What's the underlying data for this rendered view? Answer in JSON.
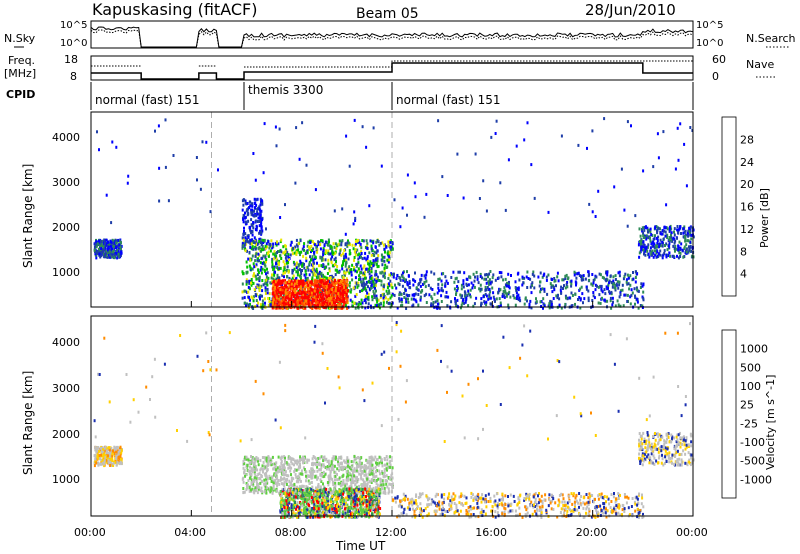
{
  "header": {
    "station": "Kapuskasing (fitACF)",
    "beam": "Beam 05",
    "date": "28/Jun/2010"
  },
  "side_labels": {
    "nsky": "N.Sky",
    "nsearch": "N.Search",
    "freq_line1": "Freq.",
    "freq_line2": "[MHz]",
    "nave": "Nave",
    "cpid": "CPID"
  },
  "noise_panel": {
    "left_ticks": [
      "10^5",
      "10^0"
    ],
    "right_ticks": [
      "10^5",
      "10^0"
    ]
  },
  "freq_panel": {
    "left_ticks": [
      "18",
      "8"
    ],
    "right_ticks": [
      "60",
      "0"
    ]
  },
  "cpid_segments": [
    {
      "start_hr": 0.0,
      "end_hr": 6.1,
      "label": "normal (fast) 151"
    },
    {
      "start_hr": 6.1,
      "end_hr": 12.0,
      "label": "themis 3300"
    },
    {
      "start_hr": 12.0,
      "end_hr": 24.0,
      "label": "normal (fast) 151"
    }
  ],
  "gap_markers_hr": [
    4.8,
    12.0
  ],
  "x_axis": {
    "label": "Time UT",
    "ticks": [
      "00:00",
      "04:00",
      "08:00",
      "12:00",
      "16:00",
      "20:00",
      "00:00"
    ],
    "range_hr": [
      0,
      24
    ]
  },
  "power_panel": {
    "ylabel": "Slant Range [km]",
    "yticks": [
      "1000",
      "2000",
      "3000",
      "4000"
    ],
    "colorbar_label": "Power [dB]",
    "colorbar_ticks": [
      "28",
      "24",
      "20",
      "16",
      "12",
      "8",
      "4"
    ],
    "colors": [
      "#0000ff",
      "#1e3ea8",
      "#2e8b57",
      "#00c000",
      "#e8e800",
      "#ff8c00",
      "#ff5000",
      "#ff0000"
    ]
  },
  "velocity_panel": {
    "ylabel": "Slant Range [km]",
    "yticks": [
      "1000",
      "2000",
      "3000",
      "4000"
    ],
    "colorbar_label": "Velocity [m s^-1]",
    "colorbar_ticks": [
      "1000",
      "500",
      "100",
      "25",
      "-25",
      "-100",
      "-500",
      "-1000"
    ],
    "colors": [
      "#1a2fb0",
      "#2d6fb8",
      "#2e8b57",
      "#5fd040",
      "#c0c0c0",
      "#ffd000",
      "#ff8c00",
      "#ff4000",
      "#ff0000"
    ]
  },
  "chart_data": [
    {
      "type": "heatmap",
      "title": "Kapuskasing (fitACF) Beam 05 28/Jun/2010",
      "xlabel": "Time UT",
      "ylabel": "Slant Range [km]",
      "xlim_hr": [
        0,
        24
      ],
      "ylim_km": [
        180,
        4500
      ],
      "colorbar": {
        "label": "Power [dB]",
        "range": [
          0,
          30
        ]
      },
      "regions": [
        {
          "name": "night echoes",
          "hr": [
            0.1,
            1.2
          ],
          "km": [
            1300,
            1700
          ],
          "dB": 6
        },
        {
          "name": "morning far range",
          "hr": [
            6.0,
            6.8
          ],
          "km": [
            1600,
            2600
          ],
          "dB": 6
        },
        {
          "name": "main echo region",
          "hr": [
            6.0,
            12.0
          ],
          "km": [
            180,
            1700
          ],
          "dB": 14
        },
        {
          "name": "strong echoes",
          "hr": [
            7.2,
            10.2
          ],
          "km": [
            180,
            800
          ],
          "dB": 28
        },
        {
          "name": "afternoon scatter",
          "hr": [
            12.0,
            22.0
          ],
          "km": [
            180,
            1000
          ],
          "dB": 6
        },
        {
          "name": "evening echoes",
          "hr": [
            21.8,
            24.0
          ],
          "km": [
            1300,
            2000
          ],
          "dB": 6
        }
      ]
    },
    {
      "type": "heatmap",
      "xlabel": "Time UT",
      "ylabel": "Slant Range [km]",
      "xlim_hr": [
        0,
        24
      ],
      "ylim_km": [
        180,
        4500
      ],
      "colorbar": {
        "label": "Velocity [m s^-1]",
        "range": [
          -1000,
          1000
        ]
      },
      "regions": [
        {
          "name": "night echoes",
          "hr": [
            0.1,
            1.2
          ],
          "km": [
            1300,
            1700
          ],
          "v": 0
        },
        {
          "name": "morning ground scatter",
          "hr": [
            6.0,
            12.0
          ],
          "km": [
            700,
            1500
          ],
          "v": 0
        },
        {
          "name": "green flow region",
          "hr": [
            7.5,
            11.5
          ],
          "km": [
            180,
            800
          ],
          "v": 60
        },
        {
          "name": "afternoon scatter",
          "hr": [
            12.0,
            22.0
          ],
          "km": [
            180,
            700
          ],
          "v": 0
        },
        {
          "name": "evening echoes",
          "hr": [
            21.8,
            24.0
          ],
          "km": [
            1300,
            2000
          ],
          "v": 0
        }
      ]
    }
  ]
}
